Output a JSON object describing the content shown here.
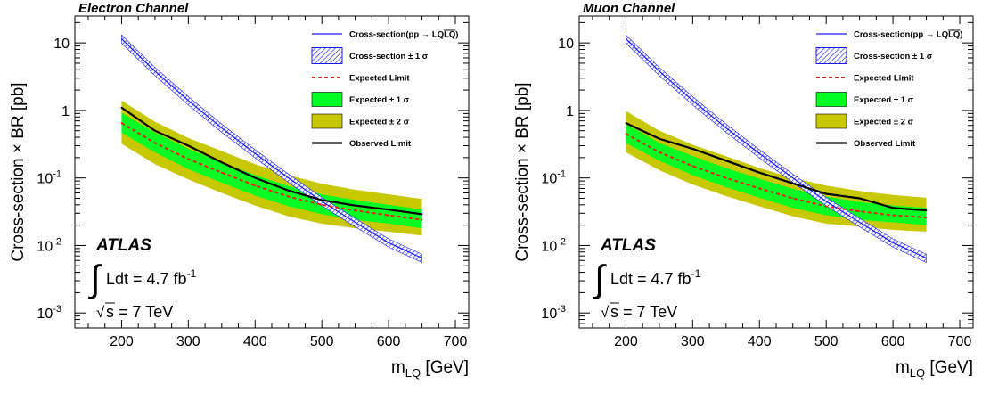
{
  "chart_data": [
    {
      "type": "line",
      "title": "Electron Channel",
      "xlabel": "m_LQ [GeV]",
      "xlabel_main": "m",
      "xlabel_sub": "LQ",
      "xlabel_unit": "[GeV]",
      "ylabel": "Cross-section × BR [pb]",
      "xlim": [
        130,
        720
      ],
      "ylim": [
        0.0006,
        25
      ],
      "log_y": true,
      "grid": false,
      "legend_position": "top-right",
      "x_ticks": [
        200,
        300,
        400,
        500,
        600,
        700
      ],
      "y_ticks": [
        {
          "value": 10,
          "base": "10",
          "exp": ""
        },
        {
          "value": 1,
          "base": "1",
          "exp": ""
        },
        {
          "value": 0.1,
          "base": "10",
          "exp": "-1"
        },
        {
          "value": 0.01,
          "base": "10",
          "exp": "-2"
        },
        {
          "value": 0.001,
          "base": "10",
          "exp": "-3"
        }
      ],
      "x": [
        200,
        250,
        300,
        350,
        400,
        450,
        500,
        550,
        600,
        650
      ],
      "theory_x": [
        200,
        250,
        300,
        350,
        400,
        450,
        500,
        550,
        600,
        650
      ],
      "theory_y": [
        11.5,
        3.8,
        1.4,
        0.55,
        0.23,
        0.1,
        0.045,
        0.022,
        0.011,
        0.0065
      ],
      "theory_band_frac": 0.14,
      "series": [
        {
          "name": "Observed Limit",
          "style": "observed",
          "color": "#000000",
          "values": [
            1.1,
            0.5,
            0.3,
            0.17,
            0.1,
            0.065,
            0.047,
            0.039,
            0.034,
            0.029
          ]
        },
        {
          "name": "Expected Limit",
          "style": "expected",
          "color": "#e8211b",
          "values": [
            0.65,
            0.33,
            0.19,
            0.12,
            0.077,
            0.053,
            0.04,
            0.033,
            0.028,
            0.024
          ]
        },
        {
          "name": "Expected ± 1σ",
          "style": "band1",
          "color": "#00ff22",
          "lower": [
            0.47,
            0.24,
            0.135,
            0.085,
            0.055,
            0.038,
            0.029,
            0.024,
            0.021,
            0.018
          ],
          "upper": [
            0.92,
            0.47,
            0.27,
            0.17,
            0.11,
            0.076,
            0.057,
            0.047,
            0.04,
            0.034
          ]
        },
        {
          "name": "Expected ± 2σ",
          "style": "band2",
          "color": "#c8c800",
          "lower": [
            0.32,
            0.16,
            0.095,
            0.06,
            0.039,
            0.027,
            0.021,
            0.018,
            0.016,
            0.014
          ],
          "upper": [
            1.4,
            0.68,
            0.39,
            0.25,
            0.16,
            0.11,
            0.082,
            0.067,
            0.057,
            0.049
          ]
        }
      ],
      "legend": [
        {
          "label": "Cross-section(pp → LQ",
          "label_suffix": "LQ",
          "label_end": ")",
          "style": "theory",
          "color": "#1a1aff"
        },
        {
          "label": "Cross-section ± 1 σ",
          "style": "hatch",
          "color": "#1a1aff"
        },
        {
          "label": "Expected Limit",
          "style": "expected",
          "color": "#e8211b"
        },
        {
          "label": "Expected ± 1 σ",
          "style": "band1",
          "color": "#00ff22"
        },
        {
          "label": "Expected ± 2 σ",
          "style": "band2",
          "color": "#c8c800"
        },
        {
          "label": "Observed Limit",
          "style": "observed",
          "color": "#000000"
        }
      ],
      "annotations": {
        "experiment": "ATLAS",
        "lumi_text": "Ldt = 4.7 fb",
        "lumi_exp": "-1",
        "energy_text": "s = 7 TeV"
      }
    },
    {
      "type": "line",
      "title": "Muon Channel",
      "xlabel": "m_LQ [GeV]",
      "xlabel_main": "m",
      "xlabel_sub": "LQ",
      "xlabel_unit": "[GeV]",
      "ylabel": "Cross-section × BR [pb]",
      "xlim": [
        130,
        720
      ],
      "ylim": [
        0.0006,
        25
      ],
      "log_y": true,
      "grid": false,
      "legend_position": "top-right",
      "x_ticks": [
        200,
        300,
        400,
        500,
        600,
        700
      ],
      "y_ticks": [
        {
          "value": 10,
          "base": "10",
          "exp": ""
        },
        {
          "value": 1,
          "base": "1",
          "exp": ""
        },
        {
          "value": 0.1,
          "base": "10",
          "exp": "-1"
        },
        {
          "value": 0.01,
          "base": "10",
          "exp": "-2"
        },
        {
          "value": 0.001,
          "base": "10",
          "exp": "-3"
        }
      ],
      "x": [
        200,
        250,
        300,
        350,
        400,
        450,
        500,
        550,
        600,
        650
      ],
      "theory_x": [
        200,
        250,
        300,
        350,
        400,
        450,
        500,
        550,
        600,
        650
      ],
      "theory_y": [
        11.5,
        3.8,
        1.4,
        0.55,
        0.23,
        0.1,
        0.045,
        0.022,
        0.011,
        0.0065
      ],
      "theory_band_frac": 0.14,
      "series": [
        {
          "name": "Observed Limit",
          "style": "observed",
          "color": "#000000",
          "values": [
            0.65,
            0.38,
            0.27,
            0.18,
            0.12,
            0.083,
            0.058,
            0.05,
            0.036,
            0.033
          ]
        },
        {
          "name": "Expected Limit",
          "style": "expected",
          "color": "#e8211b",
          "values": [
            0.45,
            0.24,
            0.15,
            0.1,
            0.07,
            0.05,
            0.038,
            0.032,
            0.028,
            0.026
          ]
        },
        {
          "name": "Expected ± 1σ",
          "style": "band1",
          "color": "#00ff22",
          "lower": [
            0.33,
            0.18,
            0.11,
            0.073,
            0.051,
            0.036,
            0.028,
            0.024,
            0.022,
            0.02
          ],
          "upper": [
            0.63,
            0.33,
            0.21,
            0.14,
            0.097,
            0.069,
            0.053,
            0.044,
            0.039,
            0.036
          ]
        },
        {
          "name": "Expected ± 2σ",
          "style": "band2",
          "color": "#c8c800",
          "lower": [
            0.24,
            0.13,
            0.08,
            0.054,
            0.038,
            0.027,
            0.021,
            0.019,
            0.017,
            0.016
          ],
          "upper": [
            0.98,
            0.5,
            0.31,
            0.21,
            0.14,
            0.1,
            0.077,
            0.064,
            0.056,
            0.051
          ]
        }
      ],
      "legend": [
        {
          "label": "Cross-section(pp → LQ",
          "label_suffix": "LQ",
          "label_end": ")",
          "style": "theory",
          "color": "#1a1aff"
        },
        {
          "label": "Cross-section ± 1 σ",
          "style": "hatch",
          "color": "#1a1aff"
        },
        {
          "label": "Expected Limit",
          "style": "expected",
          "color": "#e8211b"
        },
        {
          "label": "Expected ± 1 σ",
          "style": "band1",
          "color": "#00ff22"
        },
        {
          "label": "Expected ± 2 σ",
          "style": "band2",
          "color": "#c8c800"
        },
        {
          "label": "Observed Limit",
          "style": "observed",
          "color": "#000000"
        }
      ],
      "annotations": {
        "experiment": "ATLAS",
        "lumi_text": "Ldt = 4.7 fb",
        "lumi_exp": "-1",
        "energy_text": "s = 7 TeV"
      }
    }
  ]
}
